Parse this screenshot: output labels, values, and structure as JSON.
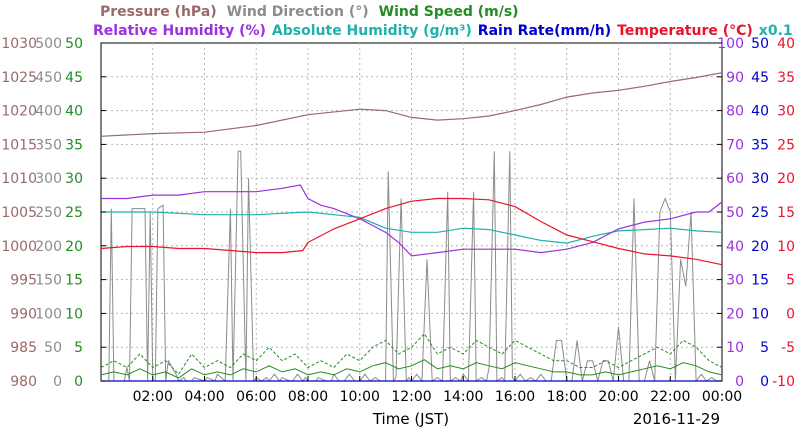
{
  "chart_data": {
    "type": "line",
    "header_line1": [
      {
        "text": "Pressure (hPa)",
        "color": "#9a6a6a"
      },
      {
        "text": "Wind Direction (°)",
        "color": "#8c8c8c"
      },
      {
        "text": "Wind Speed (m/s)",
        "color": "#238c23"
      }
    ],
    "header_line2": [
      {
        "text": "Relative Humidity (%)",
        "color": "#9b30e0"
      },
      {
        "text": "Absolute Humidity (g/m³)",
        "color": "#20b2aa"
      },
      {
        "text": "Rain Rate(mm/h)",
        "color": "#0000cc"
      },
      {
        "text": "Temperature (°C)",
        "color": "#e8142c"
      },
      {
        "text": "x0.1",
        "color": "#20b2aa"
      }
    ],
    "xlabel": "Time (JST)",
    "date": "2016-11-29",
    "x_ticks": [
      "02:00",
      "04:00",
      "06:00",
      "08:00",
      "10:00",
      "12:00",
      "14:00",
      "16:00",
      "18:00",
      "20:00",
      "22:00",
      "00:00"
    ],
    "xlim_hours": [
      0,
      24
    ],
    "grid": true,
    "axes": [
      {
        "id": "pressure",
        "side": "left",
        "color": "#9a6a6a",
        "ticks": [
          "980",
          "985",
          "990",
          "995",
          "1000",
          "1005",
          "1010",
          "1015",
          "1020",
          "1025",
          "1030"
        ],
        "ylim": [
          980,
          1030
        ]
      },
      {
        "id": "wind_direction",
        "side": "left",
        "color": "#8c8c8c",
        "ticks": [
          "0",
          "50",
          "100",
          "150",
          "200",
          "250",
          "300",
          "350",
          "400",
          "450",
          "500"
        ],
        "ylim": [
          0,
          500
        ]
      },
      {
        "id": "wind_speed",
        "side": "left",
        "color": "#238c23",
        "ticks": [
          "0",
          "5",
          "10",
          "15",
          "20",
          "25",
          "30",
          "35",
          "40",
          "45",
          "50"
        ],
        "ylim": [
          0,
          50
        ]
      },
      {
        "id": "humidity",
        "side": "right",
        "color": "#9b30e0",
        "ticks": [
          "0",
          "10",
          "20",
          "30",
          "40",
          "50",
          "60",
          "70",
          "80",
          "90",
          "100"
        ],
        "ylim": [
          0,
          100
        ]
      },
      {
        "id": "rain_rate",
        "side": "right",
        "color": "#0000cc",
        "ticks": [
          "0",
          "5",
          "10",
          "15",
          "20",
          "25",
          "30",
          "35",
          "40",
          "45",
          "50"
        ],
        "ylim": [
          0,
          50
        ]
      },
      {
        "id": "temperature",
        "side": "right",
        "color": "#e8142c",
        "ticks": [
          "-10",
          "-5",
          "0",
          "5",
          "10",
          "15",
          "20",
          "25",
          "30",
          "35",
          "40"
        ],
        "ylim": [
          -10,
          40
        ]
      }
    ],
    "series": [
      {
        "name": "Pressure (hPa)",
        "axis": "pressure",
        "color": "#9a6a6a",
        "style": "solid",
        "x": [
          0,
          2,
          4,
          6,
          8,
          10,
          11,
          12,
          13,
          14,
          15,
          16,
          17,
          18,
          19,
          20,
          21,
          22,
          23,
          24
        ],
        "values": [
          1016.2,
          1016.6,
          1016.8,
          1017.8,
          1019.4,
          1020.2,
          1020.0,
          1019.0,
          1018.6,
          1018.8,
          1019.2,
          1020.0,
          1020.9,
          1022.0,
          1022.6,
          1023.0,
          1023.6,
          1024.3,
          1024.9,
          1025.6
        ]
      },
      {
        "name": "Relative Humidity (%)",
        "axis": "humidity",
        "color": "#9b30e0",
        "style": "solid",
        "x": [
          0,
          1,
          2,
          3,
          4,
          5,
          6,
          7,
          7.7,
          8,
          8.5,
          9,
          10,
          10.5,
          11,
          11.5,
          12,
          13,
          14,
          15,
          16,
          17,
          18,
          19,
          20,
          21,
          22,
          23,
          23.5,
          24
        ],
        "values": [
          54,
          54,
          55,
          55,
          56,
          56,
          56,
          57,
          58,
          54,
          52,
          51,
          48,
          46,
          44,
          41,
          37,
          38,
          39,
          39,
          39,
          38,
          39,
          41,
          45,
          47,
          48,
          50,
          50,
          53
        ]
      },
      {
        "name": "Absolute Humidity (g/m³) x0.1",
        "axis": "pressure",
        "color": "#20b2aa",
        "style": "solid",
        "x": [
          0,
          2,
          4,
          6,
          8,
          9,
          10,
          11,
          12,
          13,
          14,
          15,
          16,
          17,
          18,
          19,
          20,
          21,
          22,
          23,
          24
        ],
        "values": [
          1005.0,
          1005.0,
          1004.6,
          1004.6,
          1005.0,
          1004.6,
          1004.2,
          1002.6,
          1002.0,
          1002.0,
          1002.6,
          1002.4,
          1001.6,
          1000.8,
          1000.4,
          1001.4,
          1002.2,
          1002.4,
          1002.6,
          1002.2,
          1002.0
        ]
      },
      {
        "name": "Temperature (°C)",
        "axis": "temperature",
        "color": "#e8142c",
        "style": "solid",
        "x": [
          0,
          1,
          2,
          3,
          4,
          5,
          6,
          7,
          7.8,
          8,
          9,
          10,
          11,
          12,
          13,
          14,
          15,
          16,
          17,
          18,
          19,
          20,
          21,
          22,
          23,
          24
        ],
        "values": [
          9.6,
          9.9,
          9.9,
          9.6,
          9.6,
          9.3,
          9.0,
          9.0,
          9.3,
          10.5,
          12.5,
          14.0,
          15.5,
          16.6,
          17.0,
          17.0,
          16.8,
          15.8,
          13.6,
          11.6,
          10.6,
          9.6,
          8.8,
          8.5,
          8.0,
          7.2
        ]
      },
      {
        "name": "Wind Direction (°)",
        "axis": "wind_direction",
        "color": "#8c8c8c",
        "style": "solid",
        "x": [
          0,
          0.3,
          0.4,
          0.5,
          0.9,
          1.0,
          1.1,
          1.2,
          1.7,
          1.8,
          1.9,
          2.0,
          2.1,
          2.2,
          2.4,
          2.5,
          2.6,
          2.9,
          3.0,
          3.2,
          3.3,
          3.5,
          3.6,
          4.0,
          4.1,
          4.4,
          4.5,
          4.8,
          5.0,
          5.1,
          5.3,
          5.4,
          5.6,
          5.7,
          5.9,
          6.0,
          6.2,
          6.4,
          6.5,
          6.7,
          6.9,
          7.0,
          7.3,
          7.4,
          7.6,
          7.8,
          7.9,
          8.0,
          8.3,
          8.4,
          8.7,
          8.9,
          9.0,
          9.2,
          9.4,
          9.6,
          9.8,
          10.0,
          10.2,
          10.4,
          10.6,
          10.8,
          11.0,
          11.1,
          11.3,
          11.4,
          11.6,
          11.8,
          11.9,
          12.0,
          12.2,
          12.4,
          12.6,
          12.8,
          13.0,
          13.2,
          13.4,
          13.5,
          13.7,
          13.9,
          14.0,
          14.2,
          14.4,
          14.5,
          14.7,
          14.9,
          15.0,
          15.2,
          15.3,
          15.5,
          15.6,
          15.8,
          15.9,
          16.0,
          16.2,
          16.4,
          16.6,
          16.8,
          17.0,
          17.2,
          17.4,
          17.6,
          17.8,
          18.0,
          18.2,
          18.4,
          18.6,
          18.8,
          19.0,
          19.2,
          19.4,
          19.6,
          19.8,
          20.0,
          20.2,
          20.4,
          20.6,
          20.8,
          21.0,
          21.2,
          21.4,
          21.6,
          21.8,
          22.0,
          22.2,
          22.4,
          22.6,
          22.8,
          23.0,
          23.2,
          23.4,
          23.6,
          23.8,
          24.0
        ],
        "values": [
          0,
          0,
          255,
          0,
          0,
          20,
          0,
          255,
          255,
          0,
          250,
          0,
          0,
          255,
          260,
          0,
          30,
          10,
          0,
          5,
          0,
          0,
          5,
          0,
          5,
          0,
          10,
          0,
          255,
          0,
          340,
          340,
          0,
          300,
          0,
          5,
          0,
          5,
          0,
          10,
          0,
          5,
          0,
          0,
          10,
          0,
          5,
          0,
          0,
          5,
          0,
          0,
          10,
          0,
          0,
          10,
          0,
          0,
          10,
          0,
          5,
          0,
          0,
          310,
          0,
          5,
          270,
          0,
          5,
          0,
          10,
          0,
          180,
          0,
          5,
          0,
          280,
          0,
          5,
          0,
          10,
          0,
          280,
          0,
          5,
          0,
          20,
          340,
          0,
          5,
          0,
          340,
          5,
          0,
          10,
          0,
          5,
          0,
          10,
          0,
          0,
          60,
          60,
          0,
          0,
          60,
          0,
          30,
          30,
          0,
          30,
          30,
          0,
          80,
          0,
          0,
          270,
          0,
          0,
          30,
          0,
          250,
          270,
          250,
          0,
          180,
          140,
          250,
          0,
          10,
          0,
          5,
          0,
          0
        ]
      },
      {
        "name": "Wind Speed (m/s)",
        "axis": "wind_speed",
        "color": "#238c23",
        "style": "mixed",
        "x": [
          0,
          0.5,
          1.0,
          1.5,
          2.0,
          2.5,
          3.0,
          3.5,
          4.0,
          4.5,
          5.0,
          5.5,
          6.0,
          6.5,
          7.0,
          7.5,
          8.0,
          8.5,
          9.0,
          9.5,
          10.0,
          10.5,
          11.0,
          11.5,
          12.0,
          12.5,
          13.0,
          13.5,
          14.0,
          14.5,
          15.0,
          15.5,
          16.0,
          16.5,
          17.0,
          17.5,
          18.0,
          18.5,
          19.0,
          19.5,
          20.0,
          20.5,
          21.0,
          21.5,
          22.0,
          22.5,
          23.0,
          23.5,
          24.0
        ],
        "values": [
          2,
          3,
          2,
          4,
          2,
          3,
          1,
          4,
          2,
          3,
          2,
          4,
          3,
          5,
          3,
          4,
          2,
          3,
          2,
          4,
          3,
          5,
          6,
          4,
          5,
          7,
          4,
          5,
          4,
          6,
          5,
          4,
          6,
          5,
          4,
          3,
          3,
          2,
          2,
          3,
          2,
          3,
          4,
          5,
          4,
          6,
          5,
          3,
          2
        ]
      },
      {
        "name": "Rain Rate(mm/h)",
        "axis": "rain_rate",
        "color": "#0000cc",
        "style": "solid",
        "x": [
          0,
          24
        ],
        "values": [
          0,
          0
        ]
      }
    ]
  }
}
